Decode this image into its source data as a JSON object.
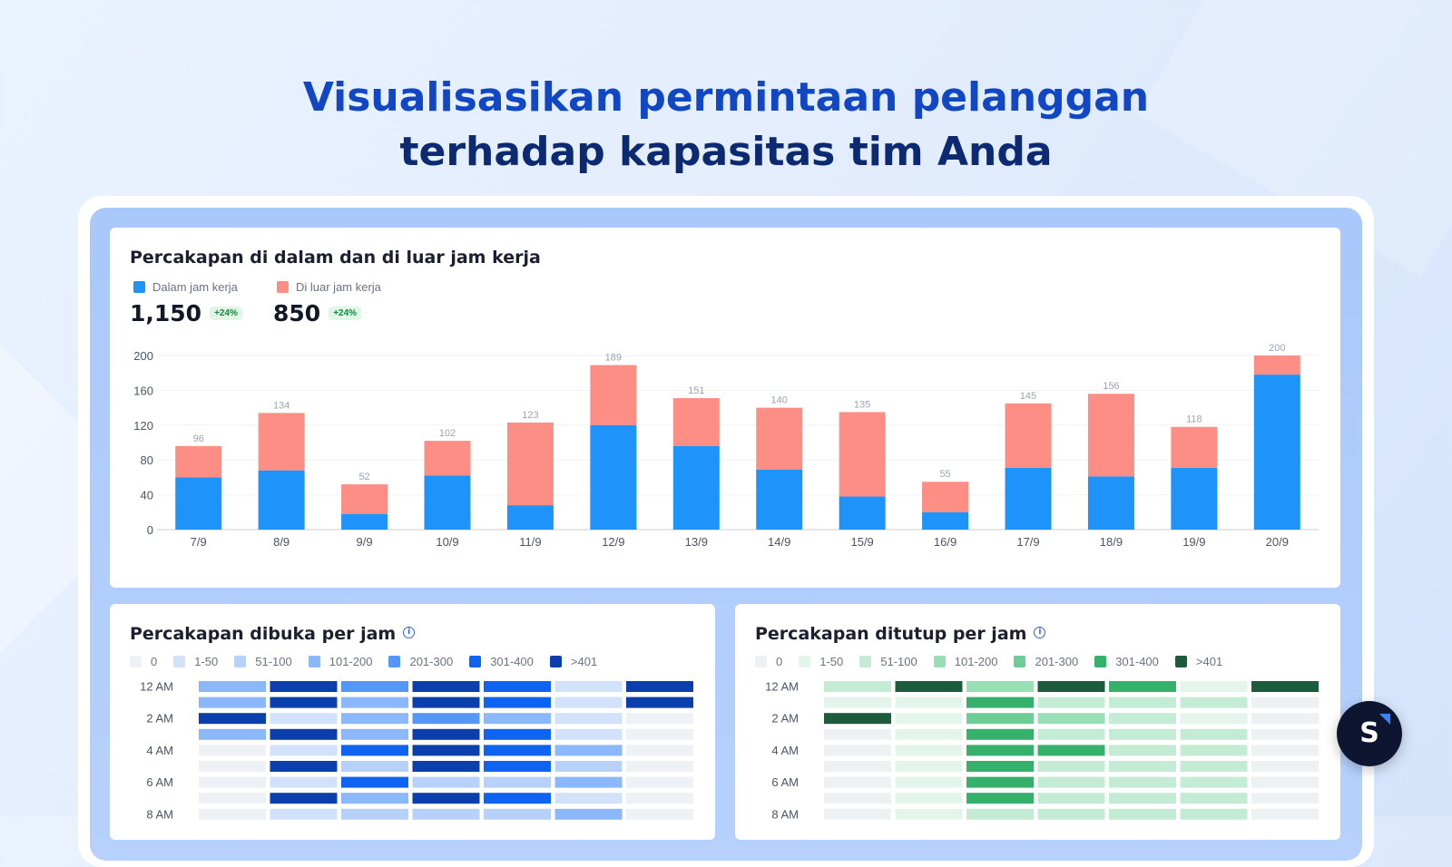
{
  "headline": {
    "line1": "Visualisasikan permintaan pelanggan",
    "line2": "terhadap kapasitas tim Anda"
  },
  "colors": {
    "in_hours": "#1e94fb",
    "out_hours": "#fc8e86",
    "blue_scale": [
      "#eef1f6",
      "#d3e2fb",
      "#b8d1fb",
      "#8ab8fa",
      "#5597f6",
      "#0e64f0",
      "#0a3fad"
    ],
    "green_scale": [
      "#eef1f4",
      "#e4f6ec",
      "#c4ecd5",
      "#99dfb6",
      "#6ccd96",
      "#36b16c",
      "#1c5c3d"
    ]
  },
  "top_card": {
    "title": "Percakapan di dalam dan di luar jam kerja",
    "legend": [
      "Dalam jam kerja",
      "Di luar jam kerja"
    ],
    "stats": [
      {
        "value": "1,150",
        "change": "+24%"
      },
      {
        "value": "850",
        "change": "+24%"
      }
    ]
  },
  "chart_data": {
    "type": "bar",
    "stacked": true,
    "categories": [
      "7/9",
      "8/9",
      "9/9",
      "10/9",
      "11/9",
      "12/9",
      "13/9",
      "14/9",
      "15/9",
      "16/9",
      "17/9",
      "18/9",
      "19/9",
      "20/9"
    ],
    "series": [
      {
        "name": "Dalam jam kerja",
        "values": [
          60,
          68,
          18,
          62,
          28,
          120,
          96,
          69,
          38,
          20,
          71,
          61,
          71,
          178
        ]
      },
      {
        "name": "Di luar jam kerja",
        "values": [
          36,
          66,
          34,
          40,
          95,
          69,
          55,
          71,
          97,
          35,
          74,
          95,
          47,
          22
        ]
      }
    ],
    "totals": [
      96,
      134,
      52,
      102,
      123,
      189,
      151,
      140,
      135,
      55,
      145,
      156,
      118,
      200
    ],
    "yticks": [
      0,
      40,
      80,
      120,
      160,
      200
    ],
    "ylim": [
      0,
      200
    ],
    "grid": true
  },
  "heatmaps": [
    {
      "title": "Percakapan dibuka per jam",
      "legend": [
        "0",
        "1-50",
        "51-100",
        "101-200",
        "201-300",
        "301-400",
        ">401"
      ],
      "row_labels": [
        "12 AM",
        "",
        "2 AM",
        "",
        "4 AM",
        "",
        "6 AM",
        "",
        "8 AM"
      ],
      "levels": [
        [
          3,
          6,
          4,
          6,
          5,
          1,
          6
        ],
        [
          3,
          6,
          3,
          6,
          5,
          1,
          6
        ],
        [
          6,
          1,
          3,
          4,
          3,
          1,
          0
        ],
        [
          3,
          6,
          3,
          6,
          5,
          1,
          0
        ],
        [
          0,
          1,
          5,
          6,
          5,
          3,
          0
        ],
        [
          0,
          6,
          2,
          6,
          5,
          2,
          0
        ],
        [
          0,
          1,
          5,
          2,
          2,
          3,
          0
        ],
        [
          0,
          6,
          3,
          6,
          5,
          1,
          0
        ],
        [
          0,
          1,
          2,
          2,
          2,
          3,
          0
        ]
      ]
    },
    {
      "title": "Percakapan ditutup per jam",
      "legend": [
        "0",
        "1-50",
        "51-100",
        "101-200",
        "201-300",
        "301-400",
        ">401"
      ],
      "row_labels": [
        "12 AM",
        "",
        "2 AM",
        "",
        "4 AM",
        "",
        "6 AM",
        "",
        "8 AM"
      ],
      "levels": [
        [
          2,
          6,
          3,
          6,
          5,
          1,
          6
        ],
        [
          1,
          1,
          5,
          2,
          2,
          2,
          0
        ],
        [
          6,
          1,
          4,
          3,
          2,
          1,
          0
        ],
        [
          0,
          1,
          5,
          2,
          2,
          2,
          0
        ],
        [
          0,
          1,
          5,
          5,
          2,
          2,
          0
        ],
        [
          0,
          1,
          5,
          2,
          2,
          2,
          0
        ],
        [
          0,
          1,
          5,
          2,
          2,
          2,
          0
        ],
        [
          0,
          1,
          5,
          2,
          2,
          2,
          0
        ],
        [
          0,
          1,
          2,
          2,
          2,
          2,
          0
        ]
      ]
    }
  ],
  "brand_badge": {
    "letter": "S"
  }
}
